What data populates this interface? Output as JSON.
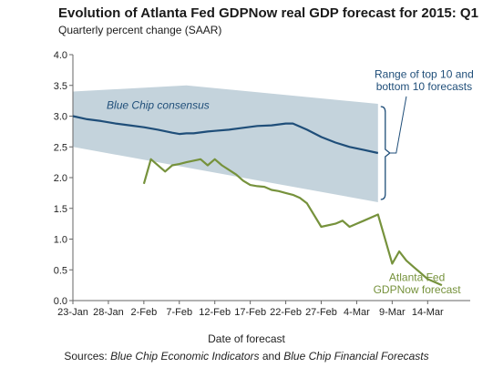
{
  "chart_data": {
    "type": "line",
    "title": "Evolution of Atlanta Fed GDPNow real GDP forecast for 2015: Q1",
    "subtitle": "Quarterly percent change (SAAR)",
    "xlabel": "Date of forecast",
    "ylabel": "",
    "ylim": [
      0,
      4.0
    ],
    "yticks": [
      "0.0",
      "0.5",
      "1.0",
      "1.5",
      "2.0",
      "2.5",
      "3.0",
      "3.5",
      "4.0"
    ],
    "xlim_days": [
      0,
      56
    ],
    "xticks": [
      "23-Jan",
      "28-Jan",
      "2-Feb",
      "7-Feb",
      "12-Feb",
      "17-Feb",
      "22-Feb",
      "27-Feb",
      "4-Mar",
      "9-Mar",
      "14-Mar"
    ],
    "grid": false,
    "series": [
      {
        "name": "Blue Chip consensus",
        "color": "#1f4e79",
        "x": [
          0,
          2,
          4,
          6,
          8,
          10,
          12,
          14,
          15,
          16,
          17,
          19,
          20,
          22,
          24,
          26,
          28,
          30,
          31,
          33,
          35,
          37,
          39,
          41,
          43
        ],
        "values": [
          3.0,
          2.95,
          2.92,
          2.88,
          2.85,
          2.82,
          2.78,
          2.73,
          2.71,
          2.72,
          2.72,
          2.75,
          2.76,
          2.78,
          2.81,
          2.84,
          2.85,
          2.88,
          2.88,
          2.78,
          2.66,
          2.57,
          2.5,
          2.45,
          2.4
        ]
      },
      {
        "name": "Atlanta Fed GDPNow forecast",
        "color": "#76923c",
        "x": [
          10,
          11,
          13,
          14,
          15,
          16,
          18,
          19,
          20,
          21,
          23,
          24,
          25,
          26,
          27,
          28,
          29,
          30,
          31,
          32,
          33,
          35,
          37,
          38,
          39,
          40,
          41,
          43,
          45,
          46,
          47,
          48,
          49,
          50,
          52
        ],
        "values": [
          1.9,
          2.3,
          2.1,
          2.2,
          2.22,
          2.25,
          2.3,
          2.2,
          2.3,
          2.2,
          2.05,
          1.95,
          1.88,
          1.86,
          1.85,
          1.8,
          1.78,
          1.75,
          1.72,
          1.67,
          1.58,
          1.2,
          1.25,
          1.3,
          1.2,
          1.25,
          1.3,
          1.4,
          0.6,
          0.8,
          0.65,
          0.55,
          0.45,
          0.35,
          0.25
        ]
      }
    ],
    "range_band": {
      "name": "Range of top 10 and bottom 10 forecasts",
      "color": "#c4d3dc",
      "x": [
        0,
        43
      ],
      "upper": [
        3.4,
        3.2
      ],
      "lower": [
        2.5,
        1.6
      ],
      "upper_peak": {
        "x": 16,
        "value": 3.5
      }
    },
    "annotations": {
      "range_label_line1": "Range of top 10 and",
      "range_label_line2": "bottom 10 forecasts",
      "blue_chip_label": "Blue Chip consensus",
      "gdpnow_label_line1": "Atlanta Fed",
      "gdpnow_label_line2": "GDPNow forecast"
    }
  },
  "sources": {
    "prefix": "Sources:",
    "source1": "Blue Chip Economic Indicators",
    "conj": "and",
    "source2": "Blue Chip Financial Forecasts"
  }
}
